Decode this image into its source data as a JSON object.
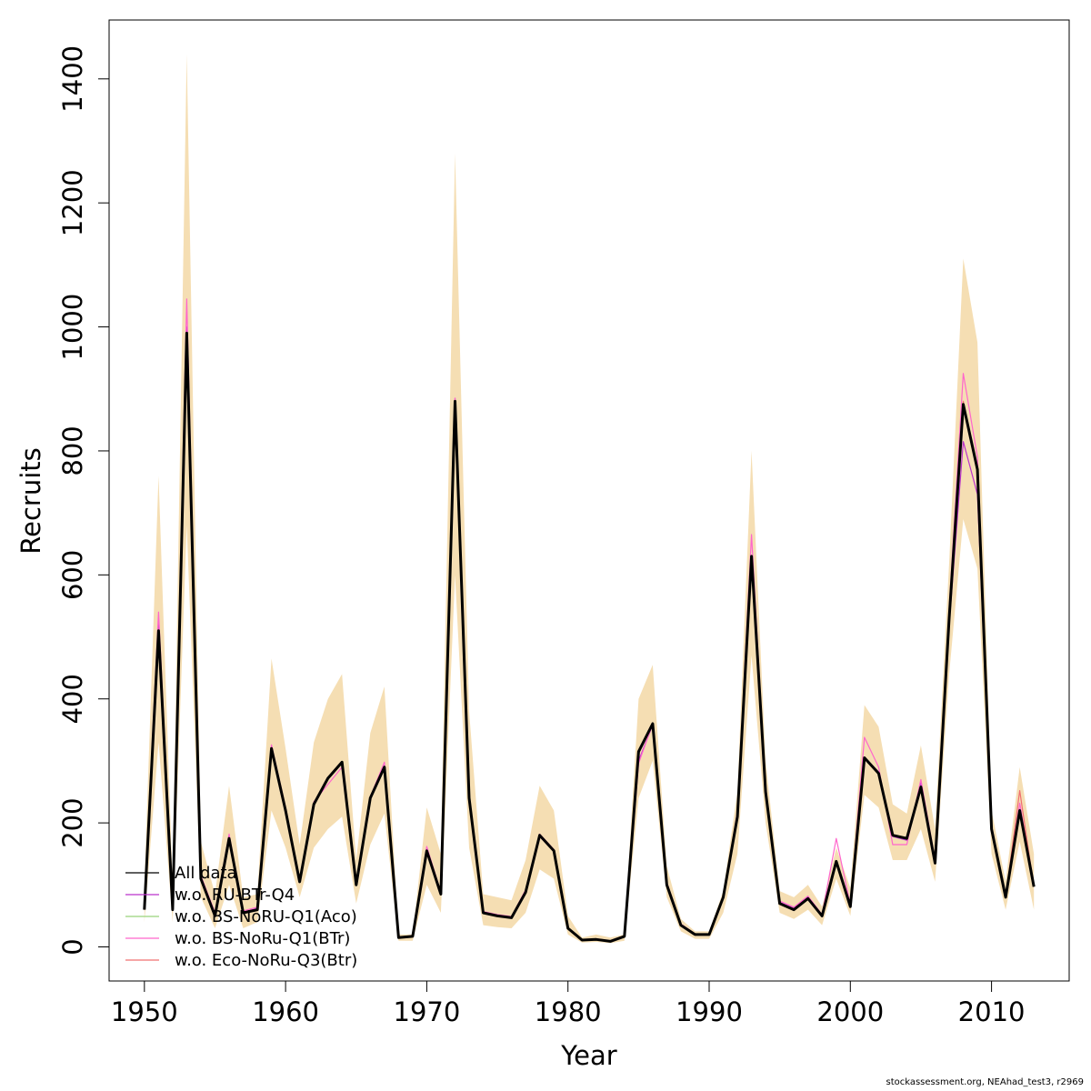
{
  "chart_data": {
    "type": "line",
    "xlabel": "Year",
    "ylabel": "Recruits",
    "xlim": [
      1947.5,
      2015.5
    ],
    "ylim": [
      -55,
      1495
    ],
    "xticks": [
      1950,
      1960,
      1970,
      1980,
      1990,
      2000,
      2010
    ],
    "yticks": [
      0,
      200,
      400,
      600,
      800,
      1000,
      1200,
      1400
    ],
    "band_color": "#f5deb3",
    "legend_position": "bottomleft",
    "x": [
      1950,
      1951,
      1952,
      1953,
      1954,
      1955,
      1956,
      1957,
      1958,
      1959,
      1960,
      1961,
      1962,
      1963,
      1964,
      1965,
      1966,
      1967,
      1968,
      1969,
      1970,
      1971,
      1972,
      1973,
      1974,
      1975,
      1976,
      1977,
      1978,
      1979,
      1980,
      1981,
      1982,
      1983,
      1984,
      1985,
      1986,
      1987,
      1988,
      1989,
      1990,
      1991,
      1992,
      1993,
      1994,
      1995,
      1996,
      1997,
      1998,
      1999,
      2000,
      2001,
      2002,
      2003,
      2004,
      2005,
      2006,
      2007,
      2008,
      2009,
      2010,
      2011,
      2012,
      2013
    ],
    "band_upper": [
      100,
      760,
      100,
      1440,
      170,
      85,
      260,
      80,
      85,
      465,
      320,
      165,
      330,
      400,
      440,
      140,
      345,
      420,
      20,
      20,
      225,
      150,
      1280,
      380,
      85,
      80,
      75,
      140,
      260,
      220,
      50,
      15,
      20,
      15,
      20,
      400,
      455,
      130,
      45,
      25,
      25,
      90,
      250,
      800,
      300,
      90,
      80,
      100,
      65,
      160,
      95,
      390,
      355,
      230,
      215,
      325,
      190,
      620,
      1110,
      975,
      220,
      105,
      290,
      150
    ],
    "band_lower": [
      40,
      330,
      40,
      680,
      80,
      30,
      100,
      30,
      40,
      220,
      160,
      80,
      160,
      190,
      210,
      70,
      165,
      215,
      10,
      10,
      100,
      55,
      600,
      160,
      35,
      32,
      30,
      55,
      125,
      110,
      20,
      7,
      8,
      6,
      10,
      240,
      300,
      80,
      25,
      13,
      13,
      55,
      150,
      470,
      200,
      55,
      45,
      60,
      35,
      110,
      50,
      245,
      225,
      140,
      140,
      190,
      105,
      440,
      690,
      610,
      150,
      60,
      170,
      60
    ],
    "series": [
      {
        "name": "All data",
        "color": "#000000",
        "values": [
          60,
          510,
          60,
          990,
          110,
          50,
          175,
          55,
          60,
          320,
          220,
          105,
          230,
          272,
          298,
          100,
          240,
          290,
          15,
          17,
          155,
          85,
          880,
          240,
          55,
          50,
          47,
          88,
          180,
          155,
          30,
          11,
          12,
          9,
          17,
          315,
          360,
          100,
          35,
          20,
          20,
          80,
          210,
          630,
          250,
          70,
          60,
          78,
          50,
          138,
          65,
          305,
          280,
          180,
          175,
          258,
          135,
          530,
          875,
          770,
          190,
          80,
          220,
          97
        ]
      },
      {
        "name": "w.o. RU-BTr-Q4",
        "color": "#bb33cc",
        "values": [
          62,
          520,
          62,
          1000,
          111,
          52,
          180,
          56,
          62,
          324,
          222,
          107,
          232,
          270,
          296,
          102,
          238,
          292,
          15,
          17,
          158,
          86,
          885,
          242,
          56,
          51,
          47,
          90,
          178,
          154,
          30,
          11,
          12,
          9,
          17,
          300,
          358,
          101,
          35,
          20,
          20,
          80,
          212,
          628,
          252,
          72,
          62,
          80,
          51,
          138,
          66,
          306,
          282,
          178,
          172,
          265,
          136,
          520,
          815,
          730,
          192,
          81,
          222,
          98
        ]
      },
      {
        "name": "w.o. BS-NoRU-Q1(Aco)",
        "color": "#99d47a",
        "values": [
          60,
          512,
          60,
          985,
          110,
          50,
          176,
          55,
          60,
          318,
          220,
          105,
          230,
          270,
          296,
          100,
          240,
          290,
          15,
          17,
          155,
          85,
          878,
          240,
          55,
          50,
          47,
          88,
          180,
          155,
          30,
          11,
          12,
          9,
          17,
          312,
          358,
          100,
          35,
          20,
          20,
          80,
          210,
          625,
          250,
          70,
          60,
          78,
          50,
          136,
          65,
          304,
          280,
          180,
          176,
          256,
          135,
          528,
          872,
          768,
          190,
          80,
          218,
          97
        ]
      },
      {
        "name": "w.o. BS-NoRu-Q1(BTr)",
        "color": "#ff66cc",
        "values": [
          65,
          540,
          65,
          1045,
          115,
          55,
          182,
          58,
          64,
          326,
          225,
          108,
          234,
          262,
          290,
          104,
          242,
          298,
          16,
          18,
          162,
          88,
          885,
          244,
          57,
          52,
          49,
          92,
          182,
          157,
          31,
          12,
          13,
          10,
          18,
          296,
          360,
          104,
          37,
          21,
          21,
          82,
          218,
          665,
          254,
          74,
          64,
          82,
          52,
          175,
          68,
          338,
          290,
          165,
          165,
          270,
          140,
          545,
          925,
          790,
          195,
          82,
          232,
          100
        ]
      },
      {
        "name": "w.o. Eco-NoRu-Q3(Btr)",
        "color": "#f07070",
        "values": [
          60,
          510,
          60,
          990,
          110,
          50,
          175,
          55,
          60,
          320,
          220,
          105,
          230,
          272,
          298,
          100,
          240,
          290,
          15,
          17,
          155,
          85,
          880,
          240,
          55,
          50,
          47,
          88,
          180,
          155,
          30,
          11,
          12,
          9,
          17,
          312,
          360,
          100,
          35,
          20,
          20,
          80,
          210,
          630,
          250,
          70,
          60,
          78,
          50,
          138,
          65,
          305,
          280,
          180,
          175,
          258,
          135,
          530,
          880,
          770,
          190,
          80,
          252,
          97
        ]
      }
    ]
  },
  "credit": "stockassessment.org, NEAhad_test3, r2969"
}
